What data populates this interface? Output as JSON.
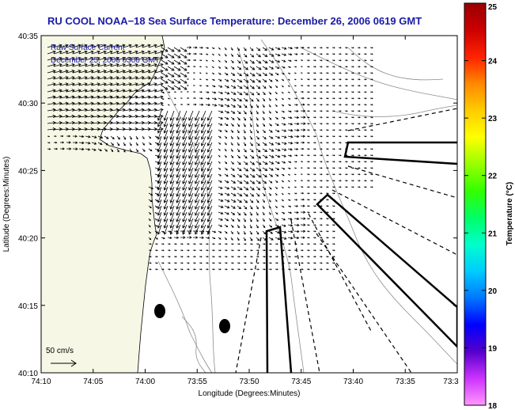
{
  "header": {
    "title": "RU COOL  NOAA−18  Sea Surface Temperature:  December 26, 2006 0619 GMT"
  },
  "overlay": {
    "line1": "Raw Surface Current",
    "line2": "December 25, 2006 0300 GMT"
  },
  "scale": {
    "label": "50 cm/s"
  },
  "axes": {
    "xlabel": "Longitude (Degrees:Minutes)",
    "ylabel": "Latitude (Degrees:Minutes)",
    "xticks": [
      "74:10",
      "74:05",
      "74:00",
      "73:55",
      "73:50",
      "73:45",
      "73:40",
      "73:35",
      "73:3"
    ],
    "yticks": [
      "40:35",
      "40:30",
      "40:25",
      "40:20",
      "40:15",
      "40:10"
    ]
  },
  "colorbar": {
    "label": "Temperature (°C)",
    "ticks": [
      "25",
      "24",
      "23",
      "22",
      "21",
      "20",
      "19",
      "18"
    ],
    "range": [
      18,
      25
    ],
    "colors": [
      "#ff99ff",
      "#cc33ff",
      "#5500cc",
      "#0000ff",
      "#0077ff",
      "#00ccff",
      "#00ffcc",
      "#00ff66",
      "#33ff00",
      "#99ff00",
      "#ffff00",
      "#ffcc00",
      "#ff8800",
      "#ff2200",
      "#cc0000",
      "#990000"
    ]
  },
  "colors": {
    "land": "#f7f7e6",
    "text_blue": "#1a1aa6"
  }
}
